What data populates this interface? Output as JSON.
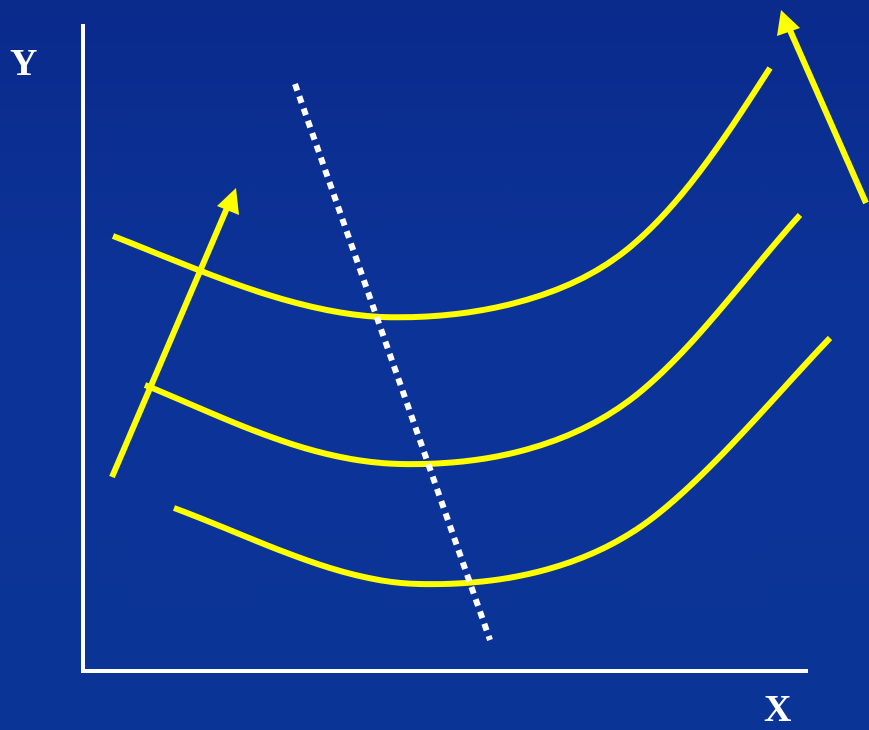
{
  "axes": {
    "y_label": "Y",
    "x_label": "X"
  },
  "colors": {
    "background": "#0b3497",
    "curves": "#ffff00",
    "axes": "#ffffff",
    "dotted_line": "#ffffff"
  },
  "diagram": {
    "curve_count": 3,
    "arrows": 2,
    "dotted_line": true
  }
}
